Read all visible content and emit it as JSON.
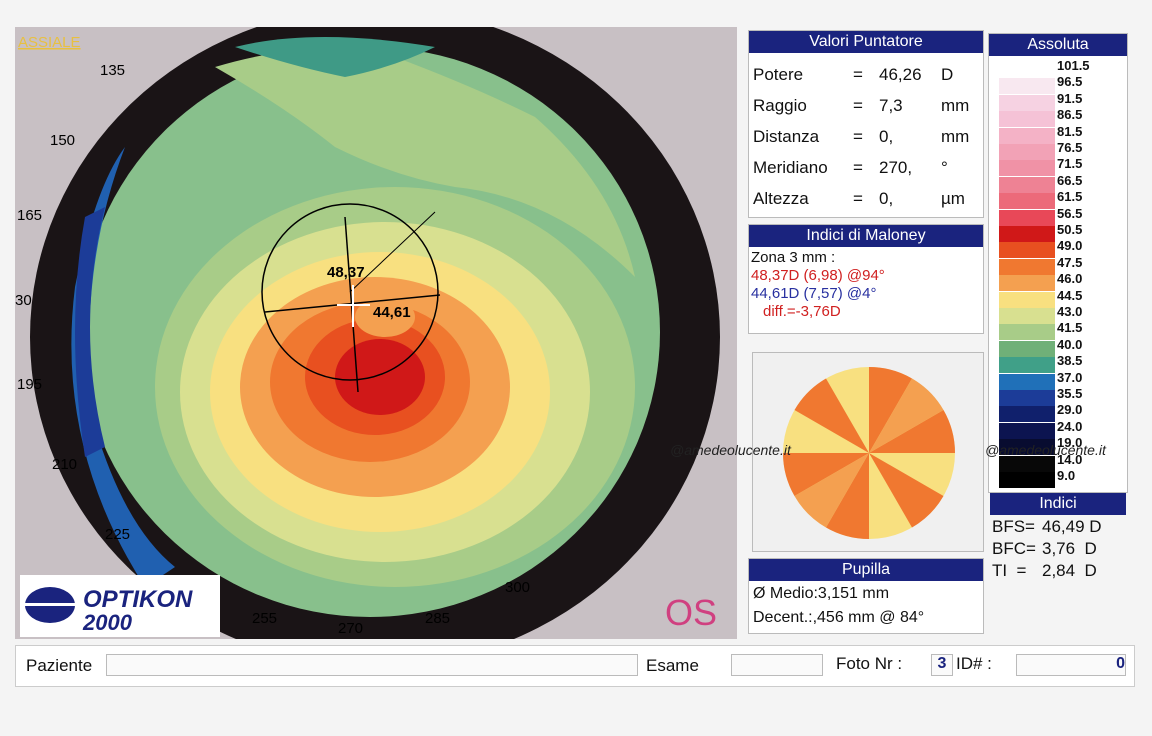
{
  "map": {
    "mode": "ASSIALE",
    "angles": [
      "135",
      "150",
      "165",
      "30",
      "195",
      "210",
      "225",
      "255",
      "270",
      "285",
      "300"
    ],
    "readings": [
      "48,37",
      "44,61"
    ],
    "logo": [
      "OPTIKON",
      "2000"
    ],
    "eye": "OS"
  },
  "pointer": {
    "title": "Valori Puntatore",
    "rows": [
      [
        "Potere",
        "=",
        "46,26",
        "D"
      ],
      [
        "Raggio",
        "=",
        "7,3",
        "mm"
      ],
      [
        "Distanza",
        "=",
        "0,",
        "mm"
      ],
      [
        "Meridiano",
        "=",
        "270,",
        "°"
      ],
      [
        "Altezza",
        "=",
        "0,",
        "µm"
      ]
    ]
  },
  "scale": {
    "title": "Assoluta",
    "labels": [
      "101.5",
      "96.5",
      "91.5",
      "86.5",
      "81.5",
      "76.5",
      "71.5",
      "66.5",
      "61.5",
      "56.5",
      "50.5",
      "49.0",
      "47.5",
      "46.0",
      "44.5",
      "43.0",
      "41.5",
      "40.0",
      "38.5",
      "37.0",
      "35.5",
      "29.0",
      "24.0",
      "19.0",
      "14.0",
      "9.0"
    ],
    "colors": [
      "#ffffff",
      "#f8e8f0",
      "#f6d2e2",
      "#f5c2d6",
      "#f4b2c6",
      "#f2a2b6",
      "#f092a6",
      "#ee8294",
      "#ec6a7a",
      "#e84858",
      "#d01818",
      "#e85020",
      "#f07830",
      "#f4a050",
      "#f8e080",
      "#d8e090",
      "#a8cc88",
      "#70b078",
      "#40a088",
      "#2070b8",
      "#1c3c98",
      "#10206c",
      "#0c1450",
      "#080c30",
      "#080808",
      "#000000"
    ]
  },
  "maloney": {
    "title": "Indici di Maloney",
    "zone": "Zona 3 mm :",
    "lines": [
      "48,37D (6,98) @94°",
      "44,61D (7,57) @4°",
      "diff.=-3,76D"
    ]
  },
  "indices": {
    "title": "Indici",
    "rows": [
      [
        "BFS=",
        "46,49 D"
      ],
      [
        "BFC=",
        "3,76  D"
      ],
      [
        "TI  =",
        "2,84  D"
      ]
    ]
  },
  "pupil": {
    "title": "Pupilla",
    "lines": [
      "Ø Medio:3,151 mm",
      "Decent.:,456 mm @ 84°"
    ]
  },
  "footer": {
    "patient_label": "Paziente",
    "exam_label": "Esame",
    "photo_label": "Foto Nr :",
    "photo": "3",
    "id_label": "ID# :",
    "id": "0"
  },
  "watermark": "@amedeolucente.it"
}
